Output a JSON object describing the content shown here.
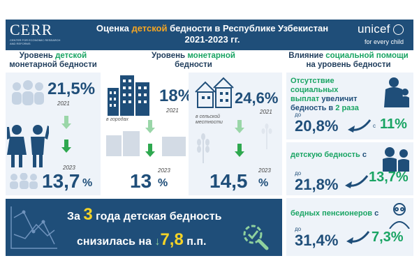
{
  "header": {
    "logo_left": "CERR",
    "logo_left_sub": "CENTER FOR ECONOMIC RESEARCH AND REFORMS",
    "title_pre": "Оценка ",
    "title_accent": "детской",
    "title_post": " бедности в Республике Узбекистан",
    "title_line2": "2021-2023 гг.",
    "logo_right": "unicef",
    "logo_right_tag": "for every child"
  },
  "columns": {
    "c1_pre": "Уровень ",
    "c1_accent": "детской",
    "c1_line2": "монетарной бедности",
    "c2_line1": "Уровень ",
    "c2_accent": "монетарной",
    "c2_line2": "бедности",
    "c3_pre": "Влияние ",
    "c3_accent": "социальной помощи",
    "c3_line2": "на уровень бедности"
  },
  "child_poverty": {
    "v2021": "21,5%",
    "y2021": "2021",
    "v2023": "13,7",
    "pct": "%",
    "y2023": "2023"
  },
  "urban": {
    "v2021": "18%",
    "y2021": "2021",
    "note": "в городах",
    "v2023": "13",
    "pct": "%",
    "y2023": "2023"
  },
  "rural": {
    "v2021": "24,6%",
    "y2021": "2021",
    "note": "в сельской местности",
    "v2023": "14,5",
    "pct": "%",
    "y2023": "2023"
  },
  "social": {
    "block1_l1": "Отсутствие социальных",
    "block1_l2a": "выплат ",
    "block1_l2b": "увеличит",
    "block1_l3a": "бедность в ",
    "block1_l3b": "2 раза",
    "b1_pre_to": "до",
    "b1_to": "20,8%",
    "b1_pre_from": "с",
    "b1_from": "11%",
    "block2_label": "детскую бедность",
    "block2_c": " с",
    "b2_pre_to": "до",
    "b2_to": "21,8%",
    "b2_from": "13,7%",
    "block3_label": "бедных пенсионеров",
    "block3_c": " с",
    "b3_pre_to": "до",
    "b3_to": "31,4%",
    "b3_from": "7,3%"
  },
  "summary": {
    "l1_pre": "За ",
    "l1_num": "3",
    "l1_post": " года детская бедность",
    "l2_pre": "снизилась на ",
    "l2_arrow": "↓",
    "l2_num": "7,8",
    "l2_post": " п.п."
  },
  "colors": {
    "navy": "#1f4e79",
    "green": "#19a463",
    "orange": "#f5a623",
    "yellow": "#f5d327"
  }
}
